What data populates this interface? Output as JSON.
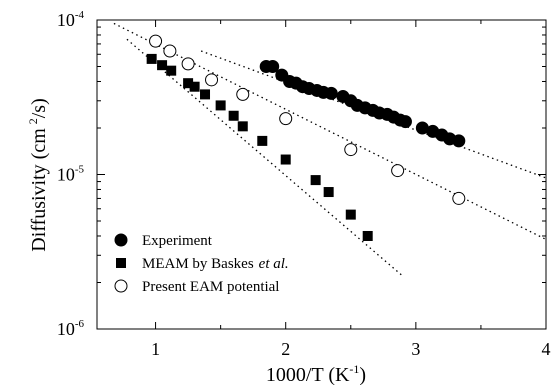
{
  "chart_data": {
    "type": "scatter",
    "xlabel": "1000/T (K",
    "xlabel_sup": "-1",
    "xlabel_close": ")",
    "ylabel": "Diffusivity (cm",
    "ylabel_sup": "2",
    "ylabel_close": "/s)",
    "x_scale": "linear",
    "y_scale": "log",
    "xlim": [
      0.55,
      4.0
    ],
    "ylim": [
      1e-06,
      0.0001
    ],
    "x_ticks": [
      {
        "value": 1,
        "label": "1"
      },
      {
        "value": 2,
        "label": "2"
      },
      {
        "value": 3,
        "label": "3"
      },
      {
        "value": 4,
        "label": "4"
      }
    ],
    "y_ticks": [
      {
        "value": 1e-06,
        "base": "10",
        "exp": "-6"
      },
      {
        "value": 1e-05,
        "base": "10",
        "exp": "-5"
      },
      {
        "value": 0.0001,
        "base": "10",
        "exp": "-4"
      }
    ],
    "legend_position": "bottom-left",
    "series": [
      {
        "name": "Experiment",
        "marker": "filled-circle",
        "fit_line": [
          [
            1.35,
            6.3e-05
          ],
          [
            4.0,
            9.5e-06
          ]
        ],
        "points": [
          [
            1.85,
            5e-05
          ],
          [
            1.9,
            5e-05
          ],
          [
            1.97,
            4.4e-05
          ],
          [
            2.03,
            4e-05
          ],
          [
            2.08,
            3.9e-05
          ],
          [
            2.13,
            3.7e-05
          ],
          [
            2.18,
            3.6e-05
          ],
          [
            2.24,
            3.5e-05
          ],
          [
            2.29,
            3.4e-05
          ],
          [
            2.35,
            3.35e-05
          ],
          [
            2.44,
            3.2e-05
          ],
          [
            2.5,
            3e-05
          ],
          [
            2.55,
            2.8e-05
          ],
          [
            2.61,
            2.7e-05
          ],
          [
            2.67,
            2.6e-05
          ],
          [
            2.72,
            2.5e-05
          ],
          [
            2.78,
            2.45e-05
          ],
          [
            2.83,
            2.35e-05
          ],
          [
            2.88,
            2.25e-05
          ],
          [
            2.92,
            2.2e-05
          ],
          [
            3.05,
            2e-05
          ],
          [
            3.13,
            1.9e-05
          ],
          [
            3.2,
            1.8e-05
          ],
          [
            3.26,
            1.7e-05
          ],
          [
            3.33,
            1.65e-05
          ]
        ]
      },
      {
        "name": "MEAM by Baskes",
        "name_suffix": "et al.",
        "marker": "filled-square",
        "fit_line": [
          [
            0.78,
            7.5e-05
          ],
          [
            2.9,
            2.2e-06
          ]
        ],
        "points": [
          [
            0.97,
            5.6e-05
          ],
          [
            1.05,
            5.1e-05
          ],
          [
            1.12,
            4.7e-05
          ],
          [
            1.25,
            3.9e-05
          ],
          [
            1.3,
            3.7e-05
          ],
          [
            1.38,
            3.3e-05
          ],
          [
            1.5,
            2.8e-05
          ],
          [
            1.6,
            2.4e-05
          ],
          [
            1.67,
            2.05e-05
          ],
          [
            1.82,
            1.65e-05
          ],
          [
            2.0,
            1.25e-05
          ],
          [
            2.23,
            9.2e-06
          ],
          [
            2.33,
            7.7e-06
          ],
          [
            2.5,
            5.5e-06
          ],
          [
            2.63,
            4e-06
          ]
        ]
      },
      {
        "name": "Present EAM potential",
        "marker": "open-circle",
        "fit_line": [
          [
            0.68,
            9.5e-05
          ],
          [
            4.0,
            3.8e-06
          ]
        ],
        "points": [
          [
            1.0,
            7.3e-05
          ],
          [
            1.11,
            6.3e-05
          ],
          [
            1.25,
            5.2e-05
          ],
          [
            1.43,
            4.1e-05
          ],
          [
            1.67,
            3.3e-05
          ],
          [
            2.0,
            2.3e-05
          ],
          [
            2.5,
            1.45e-05
          ],
          [
            2.86,
            1.06e-05
          ],
          [
            3.33,
            7e-06
          ]
        ]
      }
    ]
  }
}
